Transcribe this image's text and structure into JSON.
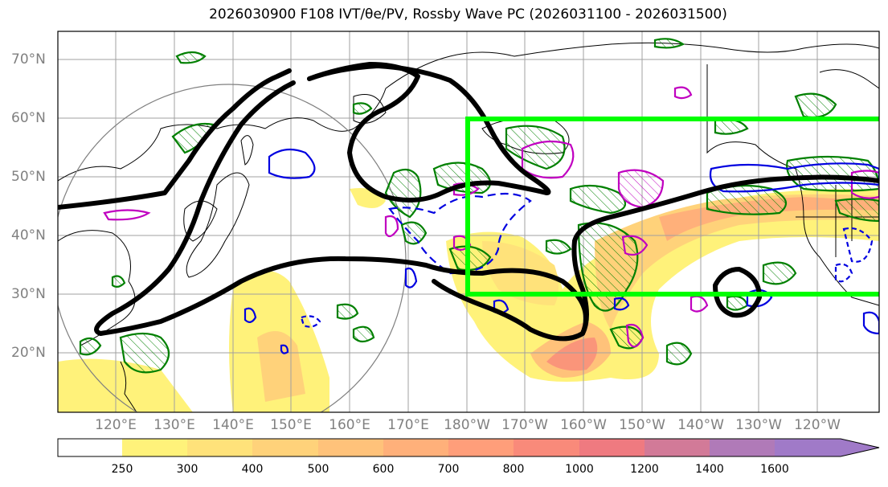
{
  "title": "2026030900 F108 IVT/θe/PV, Rossby Wave PC (2026031100 - 2026031500)",
  "map": {
    "lat_labels": [
      "70°N",
      "60°N",
      "50°N",
      "40°N",
      "30°N",
      "20°N"
    ],
    "lon_labels": [
      "120°E",
      "130°E",
      "140°E",
      "150°E",
      "160°E",
      "170°E",
      "180°W",
      "170°W",
      "160°W",
      "150°W",
      "140°W",
      "130°W",
      "120°W"
    ],
    "highlight_box_color": "#00ff00",
    "jet_contour_color": "#000000"
  },
  "colorbar": {
    "ticks": [
      "250",
      "300",
      "400",
      "500",
      "600",
      "700",
      "800",
      "1000",
      "1200",
      "1400",
      "1600"
    ],
    "colors": [
      "#ffffff",
      "#fff27a",
      "#ffe27a",
      "#ffd27a",
      "#ffc27a",
      "#ffb07a",
      "#ff9e7a",
      "#f98a7a",
      "#ef7a80",
      "#d27a98",
      "#b07ab8",
      "#a07ac8"
    ]
  }
}
